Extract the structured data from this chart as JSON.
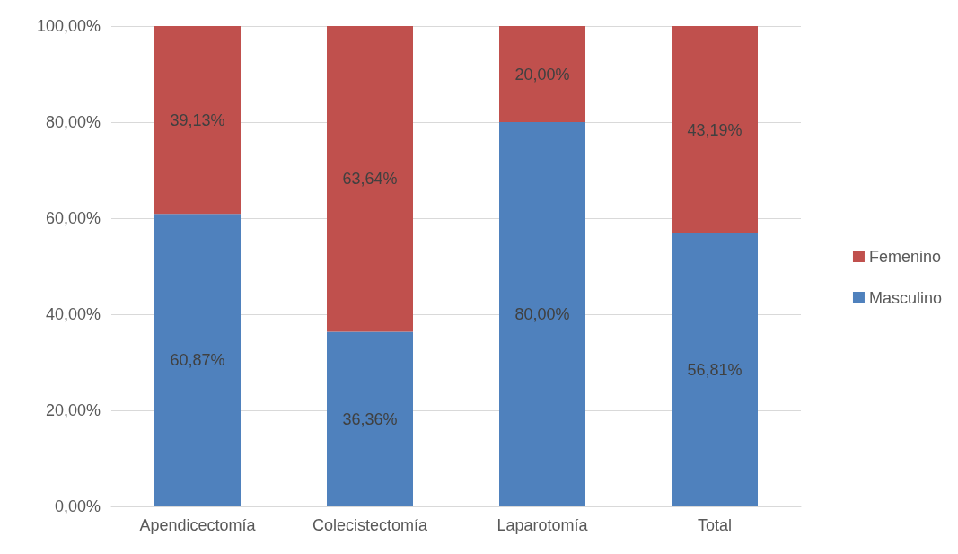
{
  "chart_data": {
    "type": "bar",
    "stacked": true,
    "categories": [
      "Apendicectomía",
      "Colecistectomía",
      "Laparotomía",
      "Total"
    ],
    "series": [
      {
        "name": "Masculino",
        "color": "#4f81bd",
        "values": [
          60.87,
          36.36,
          80,
          56.81
        ],
        "value_labels": [
          "60,87%",
          "36,36%",
          "80,00%",
          "56,81%"
        ]
      },
      {
        "name": "Femenino",
        "color": "#c0504d",
        "values": [
          39.13,
          63.64,
          20,
          43.19
        ],
        "value_labels": [
          "39,13%",
          "63,64%",
          "20,00%",
          "43,19%"
        ]
      }
    ],
    "ylim": [
      0,
      100
    ],
    "yticks": [
      {
        "value": 0,
        "label": "0,00%"
      },
      {
        "value": 20,
        "label": "20,00%"
      },
      {
        "value": 40,
        "label": "40,00%"
      },
      {
        "value": 60,
        "label": "60,00%"
      },
      {
        "value": 80,
        "label": "80,00%"
      },
      {
        "value": 100,
        "label": "100,00%"
      }
    ],
    "grid": "y",
    "legend": "right"
  }
}
